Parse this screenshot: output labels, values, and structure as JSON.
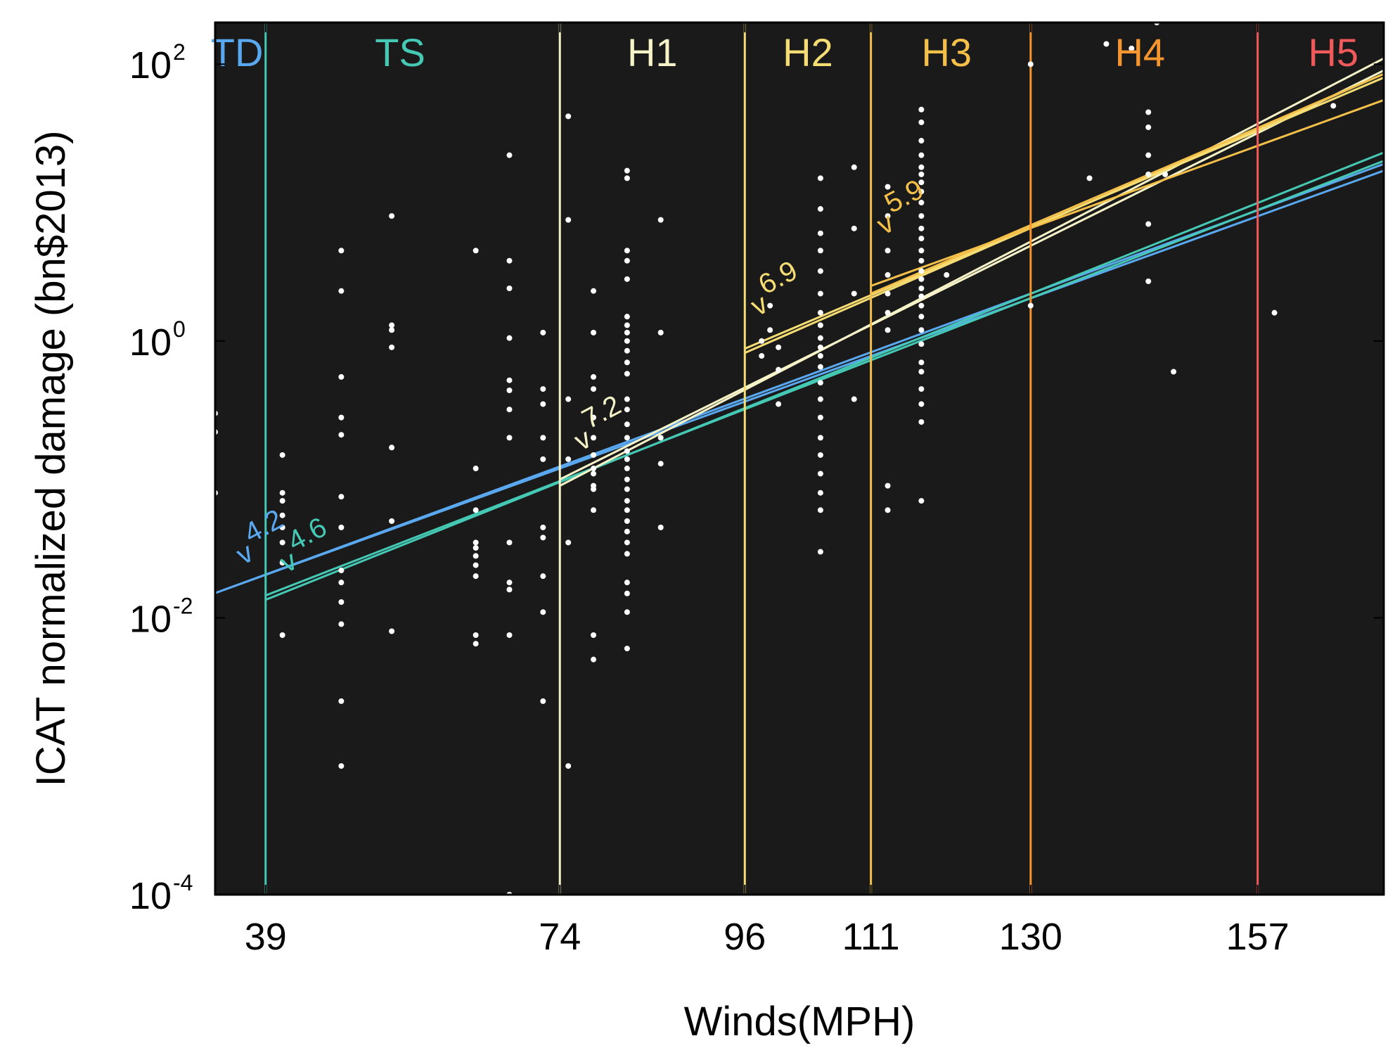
{
  "chart_data": {
    "type": "scatter",
    "xlabel": "Winds(MPH)",
    "ylabel": "ICAT normalized damage (bn$2013)",
    "xlim": [
      33,
      172
    ],
    "ylim": [
      0.0001,
      200
    ],
    "yscale": "log",
    "x_ticks": [
      39,
      74,
      96,
      111,
      130,
      157
    ],
    "y_ticks": [
      {
        "value": 0.0001,
        "base": "10",
        "exp": "-4"
      },
      {
        "value": 0.01,
        "base": "10",
        "exp": "-2"
      },
      {
        "value": 1,
        "base": "10",
        "exp": "0"
      },
      {
        "value": 100,
        "base": "10",
        "exp": "2"
      }
    ],
    "grid": false,
    "background": "#1a1a1a",
    "categories": [
      {
        "label": "TD",
        "color": "#5aa9f0",
        "x_center": 35.6
      },
      {
        "label": "TS",
        "color": "#45c9b4",
        "x_center": 55
      },
      {
        "label": "H1",
        "color": "#f6f3c8",
        "x_center": 85
      },
      {
        "label": "H2",
        "color": "#f5dc73",
        "x_center": 103.5
      },
      {
        "label": "H3",
        "color": "#f5c04a",
        "x_center": 120
      },
      {
        "label": "H4",
        "color": "#f5962f",
        "x_center": 143
      },
      {
        "label": "H5",
        "color": "#f05a5a",
        "x_center": 166
      }
    ],
    "thresholds": [
      {
        "x": 39,
        "color": "#45c9b4"
      },
      {
        "x": 74,
        "color": "#f6f3c8"
      },
      {
        "x": 96,
        "color": "#f5dc73"
      },
      {
        "x": 111,
        "color": "#f5c04a"
      },
      {
        "x": 130,
        "color": "#f5962f"
      },
      {
        "x": 157,
        "color": "#f05a5a"
      }
    ],
    "fit_lines": [
      {
        "x": [
          33,
          172
        ],
        "y": [
          0.0151,
          17
        ],
        "color": "#5aa9f0"
      },
      {
        "x": [
          33,
          172
        ],
        "y": [
          0.0151,
          19
        ],
        "color": "#5aa9f0"
      },
      {
        "x": [
          39,
          172
        ],
        "y": [
          0.0135,
          23
        ],
        "color": "#45c9b4"
      },
      {
        "x": [
          39,
          172
        ],
        "y": [
          0.0145,
          20
        ],
        "color": "#45c9b4"
      },
      {
        "x": [
          74,
          172
        ],
        "y": [
          0.09,
          110
        ],
        "color": "#f6f3c8"
      },
      {
        "x": [
          74,
          172
        ],
        "y": [
          0.1,
          90
        ],
        "color": "#f6f3c8"
      },
      {
        "x": [
          96,
          172
        ],
        "y": [
          0.82,
          85
        ],
        "color": "#f5dc73"
      },
      {
        "x": [
          96,
          172
        ],
        "y": [
          0.88,
          80
        ],
        "color": "#f5dc73"
      },
      {
        "x": [
          111,
          172
        ],
        "y": [
          2.2,
          85
        ],
        "color": "#f5c04a"
      },
      {
        "x": [
          111,
          172
        ],
        "y": [
          2.5,
          55
        ],
        "color": "#f5c04a"
      }
    ],
    "slope_labels": [
      {
        "text": "v",
        "sup": "4.2",
        "color": "#5aa9f0",
        "x": 36.3,
        "y": 0.024
      },
      {
        "text": "v",
        "sup": "4.6",
        "color": "#45c9b4",
        "x": 41.5,
        "y": 0.021
      },
      {
        "text": "v",
        "sup": "7.2",
        "color": "#f6f3c8",
        "x": 76.5,
        "y": 0.16
      },
      {
        "text": "v",
        "sup": "6.9",
        "color": "#f5dc73",
        "x": 97.5,
        "y": 1.5
      },
      {
        "text": "v",
        "sup": "5.9",
        "color": "#f5c04a",
        "x": 112.5,
        "y": 5.8
      }
    ],
    "points": [
      [
        33,
        0.3
      ],
      [
        33,
        0.22
      ],
      [
        33,
        0.08
      ],
      [
        41,
        0.08
      ],
      [
        41,
        0.07
      ],
      [
        41,
        0.055
      ],
      [
        41,
        0.045
      ],
      [
        41,
        0.035
      ],
      [
        41,
        0.025
      ],
      [
        41,
        0.15
      ],
      [
        41,
        0.0075
      ],
      [
        48,
        4.5
      ],
      [
        48,
        2.3
      ],
      [
        48,
        0.55
      ],
      [
        48,
        0.28
      ],
      [
        48,
        0.21
      ],
      [
        48,
        0.075
      ],
      [
        48,
        0.045
      ],
      [
        48,
        0.022
      ],
      [
        48,
        0.018
      ],
      [
        48,
        0.013
      ],
      [
        48,
        0.009
      ],
      [
        48,
        0.0025
      ],
      [
        48,
        0.00085
      ],
      [
        54,
        8
      ],
      [
        54,
        1.3
      ],
      [
        54,
        1.2
      ],
      [
        54,
        0.9
      ],
      [
        54,
        0.17
      ],
      [
        54,
        0.05
      ],
      [
        54,
        0.008
      ],
      [
        64,
        4.5
      ],
      [
        64,
        0.12
      ],
      [
        64,
        0.06
      ],
      [
        64,
        0.035
      ],
      [
        64,
        0.032
      ],
      [
        64,
        0.028
      ],
      [
        64,
        0.024
      ],
      [
        64,
        0.02
      ],
      [
        64,
        0.0075
      ],
      [
        64,
        0.0065
      ],
      [
        68,
        22
      ],
      [
        68,
        3.8
      ],
      [
        68,
        2.4
      ],
      [
        68,
        1.05
      ],
      [
        68,
        0.52
      ],
      [
        68,
        0.44
      ],
      [
        68,
        0.32
      ],
      [
        68,
        0.2
      ],
      [
        68,
        0.035
      ],
      [
        68,
        0.018
      ],
      [
        68,
        0.016
      ],
      [
        68,
        0.0075
      ],
      [
        68,
        0.0001
      ],
      [
        72,
        1.15
      ],
      [
        72,
        0.45
      ],
      [
        72,
        0.35
      ],
      [
        72,
        0.2
      ],
      [
        72,
        0.14
      ],
      [
        72,
        0.045
      ],
      [
        72,
        0.038
      ],
      [
        72,
        0.02
      ],
      [
        72,
        0.011
      ],
      [
        72,
        0.0025
      ],
      [
        75,
        42
      ],
      [
        75,
        7.5
      ],
      [
        75,
        0.38
      ],
      [
        75,
        0.14
      ],
      [
        75,
        0.035
      ],
      [
        75,
        0.00085
      ],
      [
        78,
        0.45
      ],
      [
        78,
        0.12
      ],
      [
        78,
        0.085
      ],
      [
        78,
        2.3
      ],
      [
        78,
        1.15
      ],
      [
        78,
        0.55
      ],
      [
        78,
        0.28
      ],
      [
        78,
        0.2
      ],
      [
        78,
        0.15
      ],
      [
        78,
        0.11
      ],
      [
        78,
        0.09
      ],
      [
        78,
        0.06
      ],
      [
        78,
        0.0075
      ],
      [
        78,
        0.005
      ],
      [
        82,
        17
      ],
      [
        82,
        15
      ],
      [
        82,
        4.5
      ],
      [
        82,
        3.8
      ],
      [
        82,
        2.8
      ],
      [
        82,
        1.5
      ],
      [
        82,
        1.3
      ],
      [
        82,
        1.15
      ],
      [
        82,
        1.0
      ],
      [
        82,
        0.85
      ],
      [
        82,
        0.7
      ],
      [
        82,
        0.58
      ],
      [
        82,
        0.38
      ],
      [
        82,
        0.32
      ],
      [
        82,
        0.25
      ],
      [
        82,
        0.2
      ],
      [
        82,
        0.16
      ],
      [
        82,
        0.14
      ],
      [
        82,
        0.12
      ],
      [
        82,
        0.1
      ],
      [
        82,
        0.085
      ],
      [
        82,
        0.07
      ],
      [
        82,
        0.06
      ],
      [
        82,
        0.05
      ],
      [
        82,
        0.042
      ],
      [
        82,
        0.035
      ],
      [
        82,
        0.029
      ],
      [
        82,
        0.018
      ],
      [
        82,
        0.015
      ],
      [
        82,
        0.011
      ],
      [
        82,
        0.006
      ],
      [
        86,
        7.5
      ],
      [
        86,
        1.15
      ],
      [
        86,
        0.2
      ],
      [
        86,
        0.13
      ],
      [
        86,
        0.045
      ],
      [
        98,
        1.0
      ],
      [
        98,
        0.78
      ],
      [
        99,
        1.8
      ],
      [
        99,
        1.2
      ],
      [
        100,
        0.9
      ],
      [
        100,
        0.62
      ],
      [
        100,
        0.35
      ],
      [
        105,
        15
      ],
      [
        105,
        9
      ],
      [
        105,
        6
      ],
      [
        105,
        4.5
      ],
      [
        105,
        3.2
      ],
      [
        105,
        2.2
      ],
      [
        105,
        1.6
      ],
      [
        105,
        1.3
      ],
      [
        105,
        1.05
      ],
      [
        105,
        0.9
      ],
      [
        105,
        0.78
      ],
      [
        105,
        0.65
      ],
      [
        105,
        0.5
      ],
      [
        105,
        0.38
      ],
      [
        105,
        0.28
      ],
      [
        105,
        0.2
      ],
      [
        105,
        0.15
      ],
      [
        105,
        0.11
      ],
      [
        105,
        0.08
      ],
      [
        105,
        0.06
      ],
      [
        105,
        0.03
      ],
      [
        109,
        18
      ],
      [
        109,
        6.5
      ],
      [
        109,
        2.2
      ],
      [
        109,
        0.38
      ],
      [
        113,
        13
      ],
      [
        113,
        8
      ],
      [
        113,
        4.5
      ],
      [
        113,
        3
      ],
      [
        113,
        2.2
      ],
      [
        113,
        1.6
      ],
      [
        113,
        1.2
      ],
      [
        113,
        0.09
      ],
      [
        113,
        0.06
      ],
      [
        117,
        47
      ],
      [
        117,
        38
      ],
      [
        117,
        28
      ],
      [
        117,
        22
      ],
      [
        117,
        18
      ],
      [
        117,
        16
      ],
      [
        117,
        14
      ],
      [
        117,
        12
      ],
      [
        117,
        10
      ],
      [
        117,
        8
      ],
      [
        117,
        6.5
      ],
      [
        117,
        5.5
      ],
      [
        117,
        4.5
      ],
      [
        117,
        3.8
      ],
      [
        117,
        3.2
      ],
      [
        117,
        2.8
      ],
      [
        117,
        2.4
      ],
      [
        117,
        2.1
      ],
      [
        117,
        1.8
      ],
      [
        117,
        1.5
      ],
      [
        117,
        1.2
      ],
      [
        117,
        0.95
      ],
      [
        117,
        0.7
      ],
      [
        117,
        0.6
      ],
      [
        117,
        0.45
      ],
      [
        117,
        0.35
      ],
      [
        117,
        0.26
      ],
      [
        117,
        0.07
      ],
      [
        120,
        3
      ],
      [
        130,
        100
      ],
      [
        130,
        1.8
      ],
      [
        137,
        15
      ],
      [
        139,
        140
      ],
      [
        142,
        130
      ],
      [
        144,
        45
      ],
      [
        144,
        35
      ],
      [
        144,
        22
      ],
      [
        144,
        16
      ],
      [
        144,
        7
      ],
      [
        144,
        2.7
      ],
      [
        145,
        200
      ],
      [
        146,
        16
      ],
      [
        147,
        0.6
      ],
      [
        159,
        1.6
      ],
      [
        166,
        50
      ]
    ]
  }
}
